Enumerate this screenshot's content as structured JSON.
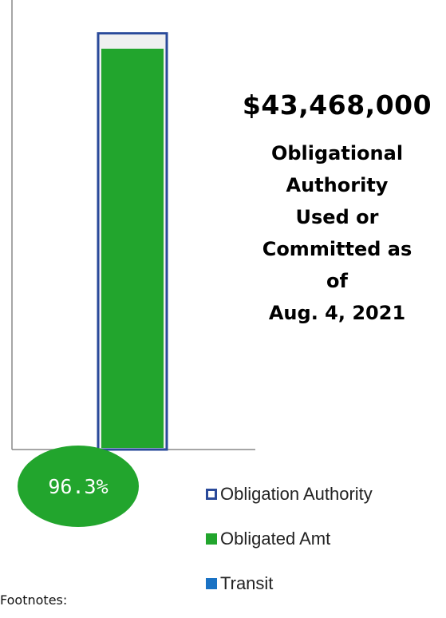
{
  "headline": {
    "amount": "$43,468,000",
    "caption_lines": [
      "Obligational",
      "Authority",
      "Used or",
      "Committed as",
      "of",
      "Aug. 4, 2021"
    ]
  },
  "footnotes_label": "Footnotes:",
  "chart_data": {
    "type": "bar",
    "title": "",
    "categories": [
      ""
    ],
    "series": [
      {
        "name": "Obligation Authority",
        "values": [
          1.0
        ]
      },
      {
        "name": "Obligated Amt",
        "values": [
          0.963
        ]
      },
      {
        "name": "Transit",
        "values": [
          0
        ]
      }
    ],
    "percent_label": "96.3%",
    "ylim": [
      0,
      1.08
    ],
    "grid": false,
    "legend_position": "bottom-right"
  },
  "colors": {
    "obligation_authority_outline": "#2a4a9a",
    "obligated_amt": "#22a52d",
    "transit": "#1a72c4",
    "percent_ellipse": "#22a52d",
    "percent_text": "#ffffff"
  },
  "legend": [
    {
      "label": "Obligation Authority"
    },
    {
      "label": "Obligated Amt"
    },
    {
      "label": "Transit"
    }
  ]
}
